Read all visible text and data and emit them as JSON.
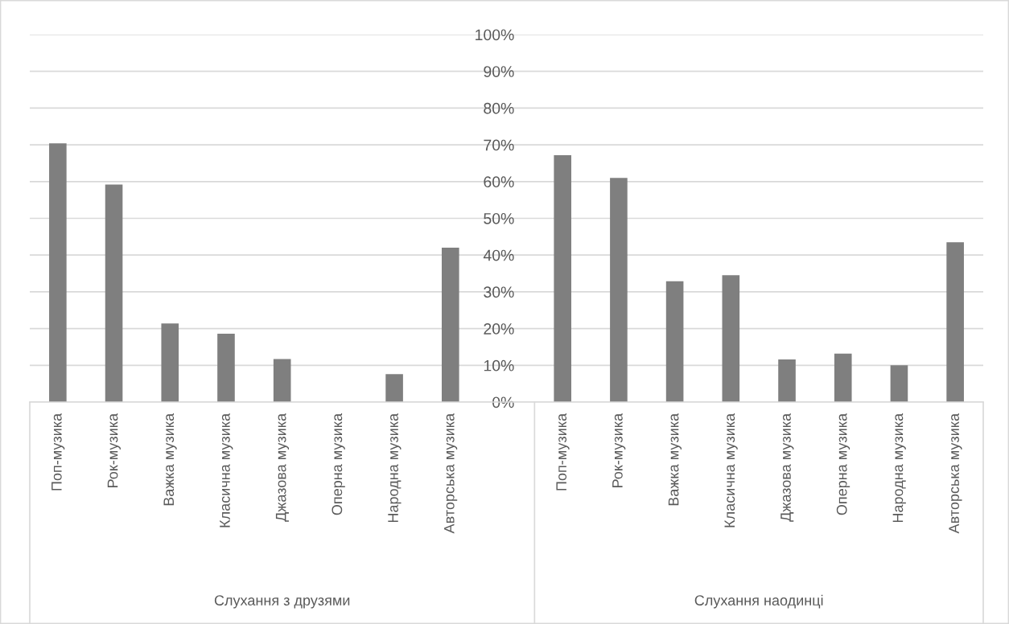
{
  "chart_data": {
    "type": "bar",
    "categories": [
      "Поп-музика",
      "Рок-музика",
      "Важка музика",
      "Класична музика",
      "Джазова музика",
      "Оперна музика",
      "Народна музика",
      "Авторська музика",
      null,
      "Поп-музика",
      "Рок-музика",
      "Важка музика",
      "Класична музика",
      "Джазова музика",
      "Оперна музика",
      "Народна музика",
      "Авторська музика"
    ],
    "values": [
      70.4,
      59.2,
      21.4,
      18.6,
      11.7,
      0,
      7.6,
      42.0,
      null,
      67.2,
      61.0,
      32.9,
      34.5,
      11.6,
      13.2,
      10.0,
      43.5
    ],
    "color": "#7f7f7f",
    "ylim": [
      0,
      100
    ],
    "yticks": [
      {
        "value": 0,
        "label": "0%"
      },
      {
        "value": 10,
        "label": "10%"
      },
      {
        "value": 20,
        "label": "20%"
      },
      {
        "value": 30,
        "label": "30%"
      },
      {
        "value": 40,
        "label": "40%"
      },
      {
        "value": 50,
        "label": "50%"
      },
      {
        "value": 60,
        "label": "60%"
      },
      {
        "value": 70,
        "label": "70%"
      },
      {
        "value": 80,
        "label": "80%"
      },
      {
        "value": 90,
        "label": "90%"
      },
      {
        "value": 100,
        "label": "100%"
      }
    ],
    "grid": "y",
    "annotations": [
      "Слухання з друзями",
      "Слухання наодинці"
    ]
  }
}
